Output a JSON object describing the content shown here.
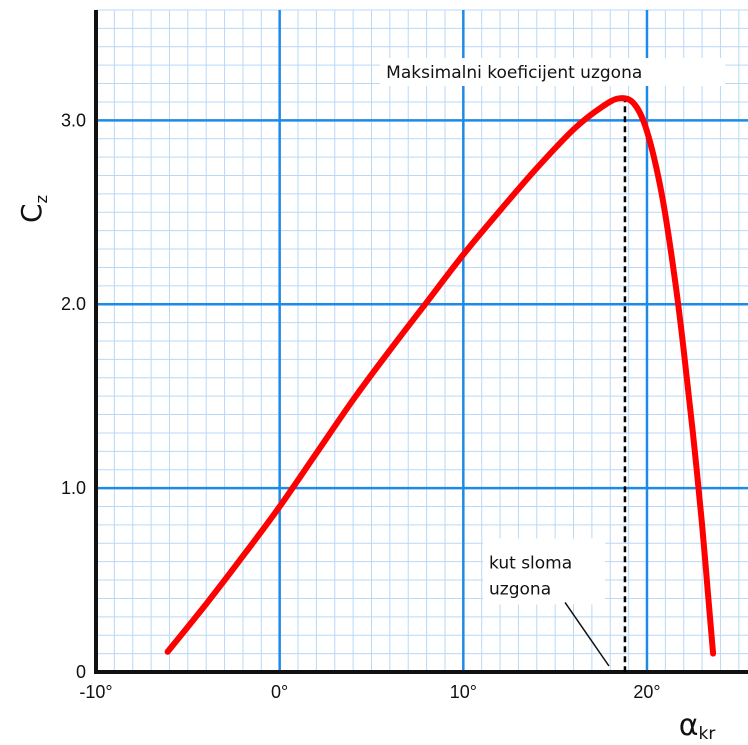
{
  "chart_data": {
    "type": "line",
    "xlabel": "α",
    "xlabel_sub": "kr",
    "ylabel": "C",
    "ylabel_sub": "z",
    "xlim": [
      -10,
      25.5
    ],
    "ylim": [
      0,
      3.6
    ],
    "x_ticks": [
      {
        "value": -10,
        "label": "-10°"
      },
      {
        "value": 0,
        "label": "0°"
      },
      {
        "value": 10,
        "label": "10°"
      },
      {
        "value": 20,
        "label": "20°"
      }
    ],
    "y_ticks": [
      {
        "value": 0,
        "label": "0"
      },
      {
        "value": 1,
        "label": "1.0"
      },
      {
        "value": 2,
        "label": "2.0"
      },
      {
        "value": 3,
        "label": "3.0"
      }
    ],
    "grid": true,
    "minor_grid_step_x": 1,
    "minor_grid_step_y": 0.1,
    "series": [
      {
        "color": "#ff0000",
        "x": [
          -6.1,
          -4,
          -2,
          0,
          2,
          4,
          6,
          8,
          10,
          12,
          14,
          16,
          17.5,
          18.5,
          19.3,
          20,
          20.8,
          21.5,
          22,
          22.5,
          23,
          23.3,
          23.6
        ],
        "y": [
          0.11,
          0.37,
          0.63,
          0.9,
          1.19,
          1.48,
          1.75,
          2.01,
          2.27,
          2.51,
          2.74,
          2.95,
          3.07,
          3.12,
          3.09,
          2.94,
          2.6,
          2.15,
          1.75,
          1.3,
          0.8,
          0.45,
          0.1
        ]
      }
    ],
    "critical_angle": {
      "x": 18.8,
      "line_color": "#000000",
      "line_style": "dashed"
    },
    "annotations": [
      {
        "id": "max",
        "text": "Maksimalni koeficijent uzgona",
        "anchor_x": 5.8,
        "anchor_y": 3.23
      },
      {
        "id": "stall",
        "lines": [
          "kut sloma",
          "uzgona"
        ],
        "anchor_x": 11.4,
        "anchor_y": 0.4
      }
    ]
  }
}
